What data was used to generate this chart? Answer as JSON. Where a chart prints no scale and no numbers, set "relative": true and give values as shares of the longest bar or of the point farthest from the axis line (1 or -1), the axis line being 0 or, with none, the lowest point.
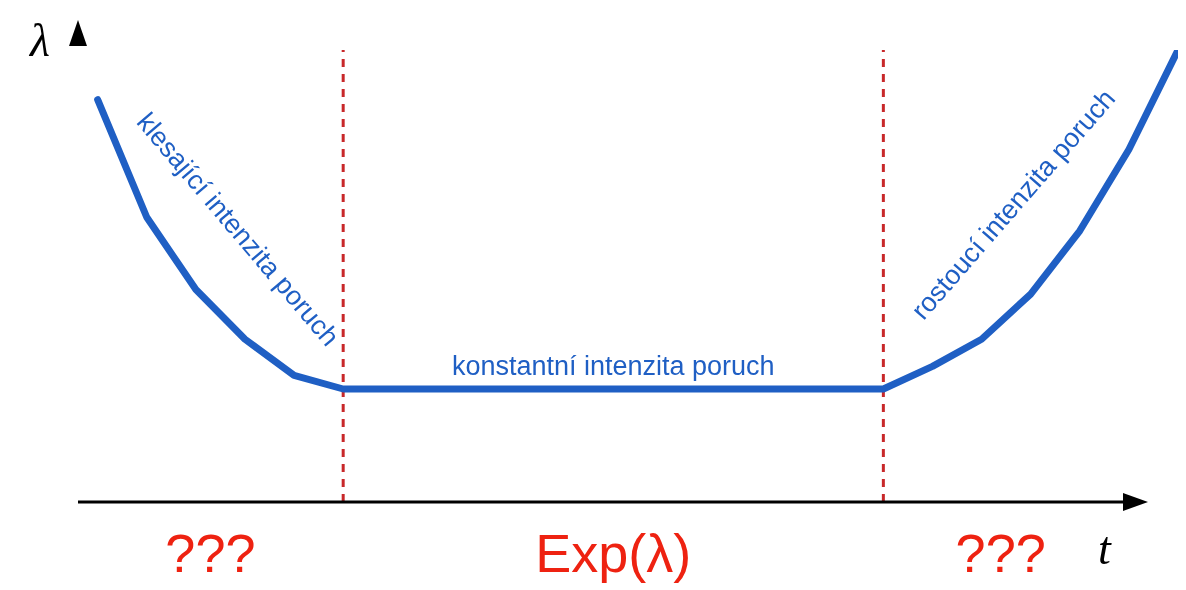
{
  "chart_data": {
    "type": "line",
    "relative": true,
    "xlabel": "t",
    "ylabel": "λ",
    "categories": [
      null,
      null,
      null,
      null,
      null,
      null,
      null,
      null,
      null,
      null,
      null,
      null,
      null,
      null,
      null,
      null,
      null,
      null,
      null,
      null,
      null,
      null,
      null
    ],
    "marker": "none",
    "line_style": "solid",
    "series": [
      {
        "color": "#1f5fc4",
        "values": [
          0.89,
          0.63,
          0.47,
          0.36,
          0.28,
          0.25,
          0.25,
          0.25,
          0.25,
          0.25,
          0.25,
          0.25,
          0.25,
          0.25,
          0.25,
          0.25,
          0.25,
          0.3,
          0.36,
          0.46,
          0.6,
          0.78,
          1
        ]
      }
    ],
    "ref_lines": [
      {
        "axis": "x",
        "color": "#c8282a",
        "line_style": "dashed"
      },
      {
        "axis": "x",
        "color": "#c8282a",
        "line_style": "dashed"
      }
    ],
    "annotations": [
      "klesající intenzita poruch",
      "konstantní intenzita poruch",
      "rostoucí intenzita poruch",
      "???",
      "Exp(λ)",
      "???"
    ]
  }
}
